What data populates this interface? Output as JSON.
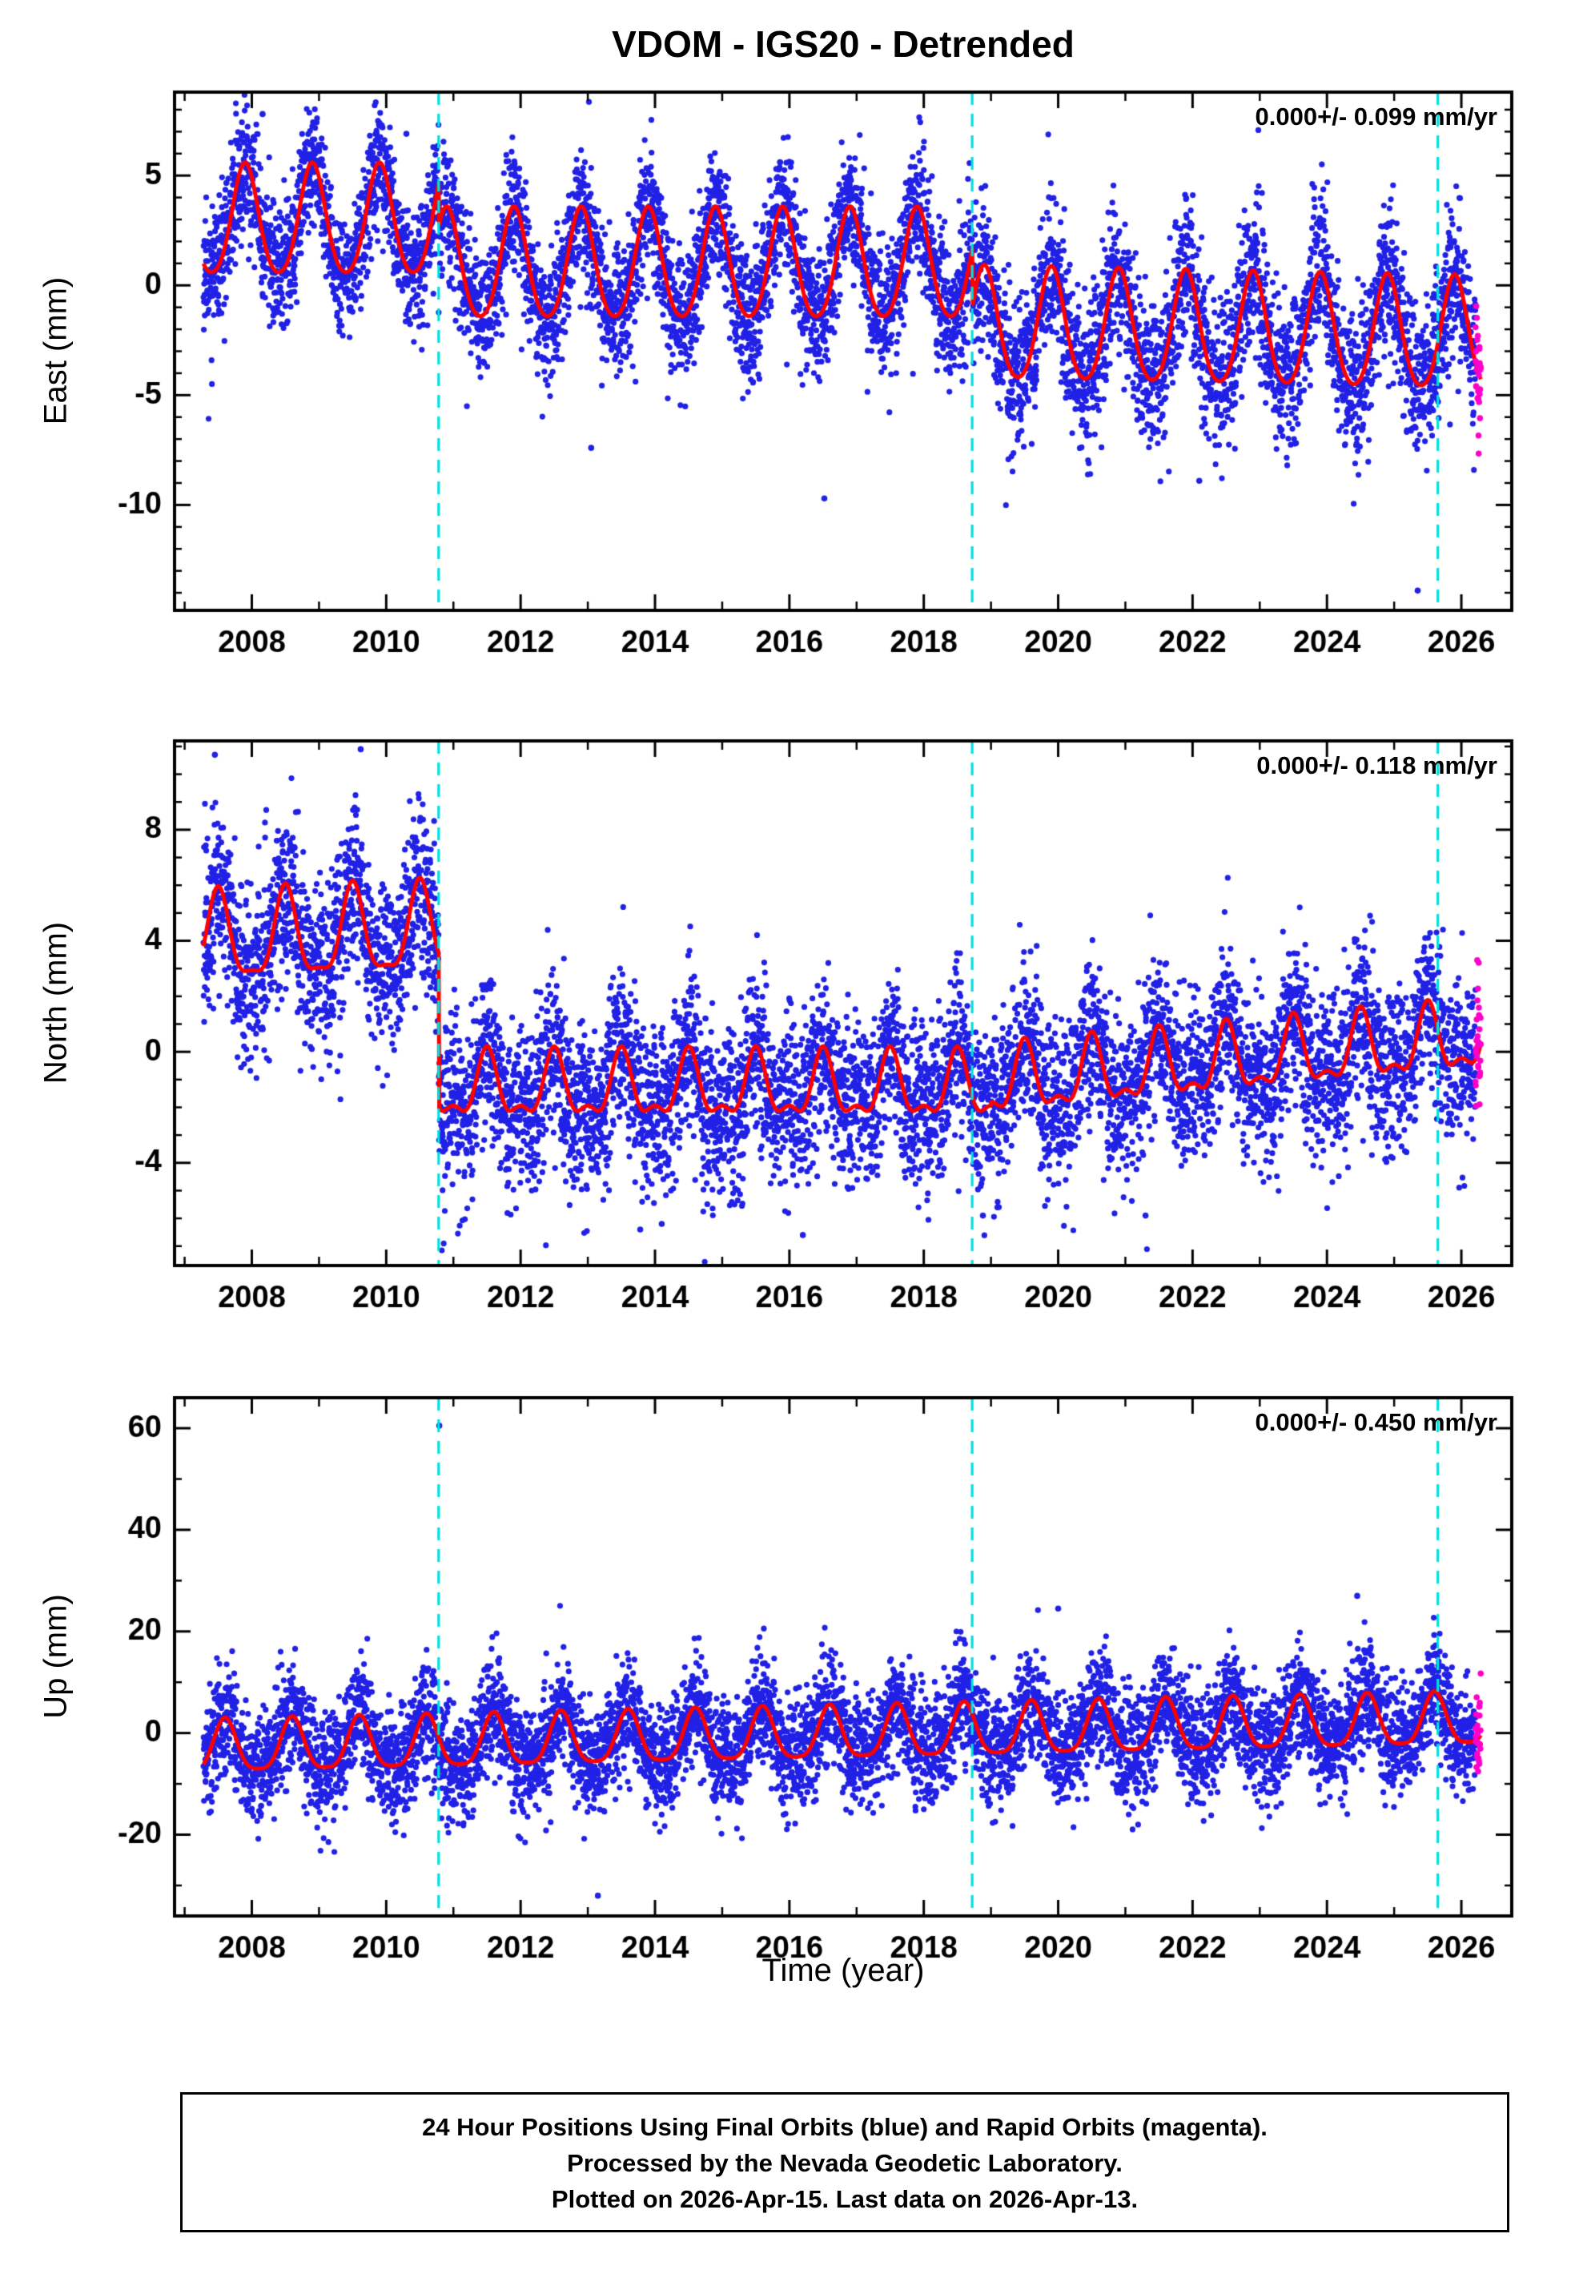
{
  "page": {
    "title": "VDOM - IGS20 - Detrended",
    "xlabel": "Time (year)"
  },
  "footer": {
    "lines": [
      "24 Hour Positions Using Final Orbits (blue) and Rapid Orbits (magenta).",
      "Processed by the Nevada Geodetic Laboratory.",
      "Plotted on 2026-Apr-15. Last data on 2026-Apr-13."
    ]
  },
  "colors": {
    "final_points": "#2121e6",
    "rapid_points": "#ff00c8",
    "model_line": "#ff0000",
    "event_line": "#00dfdf",
    "axis": "#000000"
  },
  "chart_data": [
    {
      "type": "scatter",
      "ylabel": "East (mm)",
      "rate_label": "0.000+/- 0.099 mm/yr",
      "xlim": [
        2006.85,
        2026.75
      ],
      "xticks": [
        2008,
        2010,
        2012,
        2014,
        2016,
        2018,
        2020,
        2022,
        2024,
        2026
      ],
      "ylim": [
        -14.8,
        8.8
      ],
      "yticks": [
        5,
        0,
        -5,
        -10
      ],
      "y_minor_step": 1,
      "events": [
        2010.78,
        2018.72,
        2025.65
      ],
      "series": {
        "start": 2007.28,
        "end": 2026.29,
        "rapid_start": 2026.21,
        "phase": 0.9,
        "seed": 11,
        "tail_prob": 0.012,
        "tail_mag": 3.2,
        "segments": [
          {
            "t0": 2006.8,
            "t1": 2010.78,
            "mean0": 2.8,
            "mean1": 2.8,
            "amp": 2.8,
            "h": 0.12,
            "noise": 1.35
          },
          {
            "t0": 2010.78,
            "t1": 2018.72,
            "mean0": 0.8,
            "mean1": 0.8,
            "amp": 2.8,
            "h": 0.12,
            "noise": 1.45
          },
          {
            "t0": 2018.72,
            "t1": 2026.76,
            "mean0": -1.9,
            "mean1": -2.4,
            "amp": 2.85,
            "h": 0.12,
            "noise": 1.7
          }
        ],
        "outliers": [
          [
            2013.05,
            -7.4
          ],
          [
            2016.52,
            -9.7
          ],
          [
            2025.35,
            -13.9
          ],
          [
            2008.16,
            7.8
          ],
          [
            2010.3,
            6.9
          ],
          [
            2022.1,
            -8.9
          ]
        ]
      }
    },
    {
      "type": "scatter",
      "ylabel": "North (mm)",
      "rate_label": "0.000+/- 0.118 mm/yr",
      "xlim": [
        2006.85,
        2026.75
      ],
      "xticks": [
        2008,
        2010,
        2012,
        2014,
        2016,
        2018,
        2020,
        2022,
        2024,
        2026
      ],
      "ylim": [
        -7.7,
        11.2
      ],
      "yticks": [
        8,
        4,
        0,
        -4
      ],
      "y_minor_step": 1,
      "events": [
        2010.78,
        2018.72,
        2025.65
      ],
      "series": {
        "start": 2007.28,
        "end": 2026.29,
        "rapid_start": 2026.21,
        "phase": 0.5,
        "seed": 22,
        "tail_prob": 0.012,
        "tail_mag": 2.6,
        "segments": [
          {
            "t0": 2006.8,
            "t1": 2010.78,
            "mean0": 3.9,
            "mean1": 4.3,
            "amp": 2.0,
            "h": 0.3,
            "noise": 1.55
          },
          {
            "t0": 2010.78,
            "t1": 2019.0,
            "mean0": -1.35,
            "mean1": -1.35,
            "amp": 1.55,
            "h": 0.45,
            "noise": 1.5
          },
          {
            "t0": 2019.0,
            "t1": 2026.76,
            "mean0": -1.2,
            "mean1": 0.55,
            "amp": 1.6,
            "h": 0.45,
            "noise": 1.45
          }
        ],
        "outliers": [
          [
            2013.78,
            -6.4
          ],
          [
            2016.2,
            -6.6
          ],
          [
            2018.88,
            -5.9
          ],
          [
            2007.45,
            10.7
          ],
          [
            2009.62,
            10.9
          ],
          [
            2021.3,
            -5.9
          ],
          [
            2014.1,
            -6.2
          ]
        ]
      }
    },
    {
      "type": "scatter",
      "ylabel": "Up (mm)",
      "rate_label": "0.000+/- 0.450 mm/yr",
      "xlim": [
        2006.85,
        2026.75
      ],
      "xticks": [
        2008,
        2010,
        2012,
        2014,
        2016,
        2018,
        2020,
        2022,
        2024,
        2026
      ],
      "ylim": [
        -36,
        66
      ],
      "yticks": [
        60,
        40,
        20,
        0,
        -20
      ],
      "y_minor_step": 10,
      "events": [
        2010.78,
        2018.72,
        2025.65
      ],
      "series": {
        "start": 2007.28,
        "end": 2026.29,
        "rapid_start": 2026.21,
        "phase": 0.6,
        "seed": 33,
        "tail_prob": 0.0,
        "tail_mag": 0,
        "segments": [
          {
            "t0": 2006.8,
            "t1": 2026.76,
            "mean0": -3.4,
            "mean1": 2.4,
            "amp": 6.2,
            "h": 0.22,
            "noise": 5.4
          }
        ],
        "outliers": [
          [
            2010.79,
            60.5
          ],
          [
            2013.15,
            -32.0
          ],
          [
            2024.45,
            27.0
          ],
          [
            2020.0,
            24.5
          ]
        ]
      }
    }
  ]
}
